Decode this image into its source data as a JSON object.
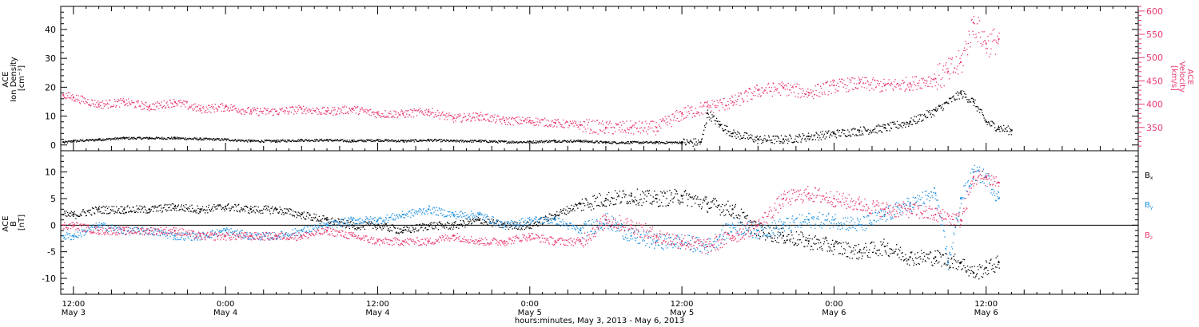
{
  "colors": {
    "black": "#000000",
    "red": "#e8386d",
    "blue": "#1e8fe0"
  },
  "chart_data": [
    {
      "type": "scatter",
      "title": "",
      "x_range_hours": [
        -1.0,
        84.0
      ],
      "x_ticks": [
        {
          "hour": 0,
          "time": "12:00",
          "date": "May 3"
        },
        {
          "hour": 12,
          "time": "0:00",
          "date": "May 4"
        },
        {
          "hour": 24,
          "time": "12:00",
          "date": "May 4"
        },
        {
          "hour": 36,
          "time": "0:00",
          "date": "May 5"
        },
        {
          "hour": 48,
          "time": "12:00",
          "date": "May 5"
        },
        {
          "hour": 60,
          "time": "0:00",
          "date": "May 6"
        },
        {
          "hour": 72,
          "time": "12:00",
          "date": "May 6"
        }
      ],
      "xlabel": "hours:minutes, May  3, 2013 - May  6, 2013",
      "left_axis": {
        "label_lines": [
          "ACE",
          "Ion Density",
          "[cm⁻³]"
        ],
        "ylim": [
          -2,
          48
        ],
        "ticks": [
          0,
          10,
          20,
          30,
          40
        ]
      },
      "right_axis": {
        "label_lines": [
          "ACE",
          "Velocity",
          "[km/s]"
        ],
        "ylim": [
          300,
          610
        ],
        "ticks": [
          350,
          400,
          450,
          500,
          550,
          600
        ]
      },
      "series": [
        {
          "axis": "left",
          "color_key": "black",
          "points": [
            [
              -0.8,
              1
            ],
            [
              0,
              1.5
            ],
            [
              2,
              2
            ],
            [
              4,
              2.5
            ],
            [
              6,
              2.5
            ],
            [
              8,
              2.5
            ],
            [
              10,
              2.2
            ],
            [
              12,
              2
            ],
            [
              14,
              1.5
            ],
            [
              16,
              1.5
            ],
            [
              18,
              1.8
            ],
            [
              20,
              1.8
            ],
            [
              22,
              1.5
            ],
            [
              24,
              1.8
            ],
            [
              26,
              1.5
            ],
            [
              28,
              1.8
            ],
            [
              30,
              1.5
            ],
            [
              32,
              1.5
            ],
            [
              34,
              1.2
            ],
            [
              36,
              1.2
            ],
            [
              38,
              1.5
            ],
            [
              40,
              1.5
            ],
            [
              42,
              1
            ],
            [
              44,
              1
            ],
            [
              46,
              1
            ],
            [
              48,
              1
            ],
            [
              49.5,
              1
            ],
            [
              50,
              11
            ],
            [
              51,
              7
            ],
            [
              52,
              4
            ],
            [
              54,
              2
            ],
            [
              56,
              2
            ],
            [
              58,
              3
            ],
            [
              60,
              4
            ],
            [
              62,
              5
            ],
            [
              64,
              6
            ],
            [
              66,
              8
            ],
            [
              68,
              12
            ],
            [
              70,
              18
            ],
            [
              71,
              15
            ],
            [
              72,
              8
            ],
            [
              73,
              6
            ],
            [
              74,
              5
            ]
          ]
        },
        {
          "axis": "right",
          "color_key": "red",
          "points": [
            [
              -0.8,
              420
            ],
            [
              0,
              415
            ],
            [
              2,
              400
            ],
            [
              4,
              405
            ],
            [
              6,
              395
            ],
            [
              8,
              405
            ],
            [
              10,
              390
            ],
            [
              12,
              395
            ],
            [
              14,
              385
            ],
            [
              16,
              385
            ],
            [
              18,
              390
            ],
            [
              20,
              385
            ],
            [
              22,
              390
            ],
            [
              24,
              380
            ],
            [
              26,
              380
            ],
            [
              28,
              385
            ],
            [
              30,
              370
            ],
            [
              32,
              375
            ],
            [
              34,
              365
            ],
            [
              36,
              365
            ],
            [
              38,
              360
            ],
            [
              40,
              355
            ],
            [
              42,
              350
            ],
            [
              44,
              350
            ],
            [
              46,
              350
            ],
            [
              48,
              380
            ],
            [
              50,
              395
            ],
            [
              52,
              405
            ],
            [
              54,
              430
            ],
            [
              56,
              435
            ],
            [
              58,
              425
            ],
            [
              60,
              440
            ],
            [
              62,
              445
            ],
            [
              64,
              440
            ],
            [
              66,
              445
            ],
            [
              68,
              455
            ],
            [
              69,
              470
            ],
            [
              70,
              490
            ],
            [
              71,
              575
            ],
            [
              72,
              530
            ],
            [
              73,
              540
            ]
          ]
        }
      ]
    },
    {
      "type": "scatter",
      "title": "",
      "x_range_hours": [
        -1.0,
        84.0
      ],
      "left_axis": {
        "label_lines": [
          "ACE",
          "B",
          "[nT]"
        ],
        "ylim": [
          -13,
          14
        ],
        "ticks": [
          -10,
          -5,
          0,
          5,
          10
        ],
        "zero_line": true
      },
      "legend_placement": "right",
      "series": [
        {
          "name": "Bx",
          "color_key": "black",
          "points": [
            [
              -0.8,
              2
            ],
            [
              0,
              2
            ],
            [
              2,
              3
            ],
            [
              4,
              3
            ],
            [
              6,
              3
            ],
            [
              8,
              3.5
            ],
            [
              10,
              3
            ],
            [
              12,
              3.5
            ],
            [
              14,
              3
            ],
            [
              16,
              3
            ],
            [
              18,
              2
            ],
            [
              20,
              1
            ],
            [
              22,
              0
            ],
            [
              24,
              0
            ],
            [
              26,
              -1
            ],
            [
              28,
              0
            ],
            [
              30,
              0
            ],
            [
              32,
              1
            ],
            [
              34,
              0
            ],
            [
              36,
              0
            ],
            [
              38,
              2
            ],
            [
              40,
              4
            ],
            [
              42,
              5
            ],
            [
              44,
              5.5
            ],
            [
              46,
              5
            ],
            [
              48,
              5.5
            ],
            [
              50,
              4
            ],
            [
              52,
              3
            ],
            [
              54,
              -1
            ],
            [
              56,
              -2
            ],
            [
              58,
              -3
            ],
            [
              60,
              -4
            ],
            [
              62,
              -5
            ],
            [
              64,
              -4
            ],
            [
              66,
              -6
            ],
            [
              68,
              -6
            ],
            [
              70,
              -7
            ],
            [
              71,
              -9
            ],
            [
              72,
              -8
            ],
            [
              73,
              -7
            ]
          ]
        },
        {
          "name": "By",
          "color_key": "blue",
          "points": [
            [
              -0.8,
              -2
            ],
            [
              0,
              -2
            ],
            [
              2,
              0
            ],
            [
              4,
              -1
            ],
            [
              6,
              -1
            ],
            [
              8,
              -2
            ],
            [
              10,
              -2
            ],
            [
              12,
              -1
            ],
            [
              14,
              -2
            ],
            [
              16,
              -2
            ],
            [
              18,
              -1
            ],
            [
              20,
              0
            ],
            [
              22,
              1
            ],
            [
              24,
              1
            ],
            [
              26,
              2
            ],
            [
              28,
              3
            ],
            [
              30,
              2
            ],
            [
              32,
              2
            ],
            [
              34,
              0
            ],
            [
              36,
              1
            ],
            [
              38,
              1
            ],
            [
              40,
              -1
            ],
            [
              42,
              1
            ],
            [
              44,
              -2
            ],
            [
              46,
              -3
            ],
            [
              48,
              -3
            ],
            [
              50,
              -4
            ],
            [
              52,
              0
            ],
            [
              54,
              -1
            ],
            [
              56,
              0
            ],
            [
              58,
              1
            ],
            [
              60,
              1
            ],
            [
              62,
              0
            ],
            [
              64,
              2
            ],
            [
              66,
              4
            ],
            [
              68,
              6
            ],
            [
              69,
              -7
            ],
            [
              70,
              5
            ],
            [
              71,
              10
            ],
            [
              72,
              9
            ],
            [
              73,
              5
            ]
          ]
        },
        {
          "name": "Bz",
          "color_key": "red",
          "points": [
            [
              -0.8,
              0
            ],
            [
              0,
              0
            ],
            [
              2,
              -1
            ],
            [
              4,
              -1
            ],
            [
              6,
              -1
            ],
            [
              8,
              -1
            ],
            [
              10,
              -2
            ],
            [
              12,
              -2
            ],
            [
              14,
              -2
            ],
            [
              16,
              -2
            ],
            [
              18,
              -2
            ],
            [
              20,
              -1
            ],
            [
              22,
              -2
            ],
            [
              24,
              -3
            ],
            [
              26,
              -3
            ],
            [
              28,
              -3
            ],
            [
              30,
              -2
            ],
            [
              32,
              -3
            ],
            [
              34,
              -3
            ],
            [
              36,
              -2
            ],
            [
              38,
              -3
            ],
            [
              40,
              -3
            ],
            [
              42,
              1
            ],
            [
              44,
              0
            ],
            [
              46,
              -2
            ],
            [
              48,
              -3
            ],
            [
              50,
              -4
            ],
            [
              52,
              -2
            ],
            [
              54,
              0
            ],
            [
              56,
              5
            ],
            [
              58,
              6
            ],
            [
              60,
              5
            ],
            [
              62,
              4
            ],
            [
              64,
              3
            ],
            [
              66,
              3
            ],
            [
              68,
              2
            ],
            [
              70,
              1
            ],
            [
              71,
              9
            ],
            [
              72,
              9
            ],
            [
              73,
              8
            ]
          ]
        }
      ],
      "legend": [
        {
          "label": "B",
          "sub": "x",
          "color_key": "black"
        },
        {
          "label": "B",
          "sub": "y",
          "color_key": "blue"
        },
        {
          "label": "B",
          "sub": "z",
          "color_key": "red"
        }
      ]
    }
  ]
}
